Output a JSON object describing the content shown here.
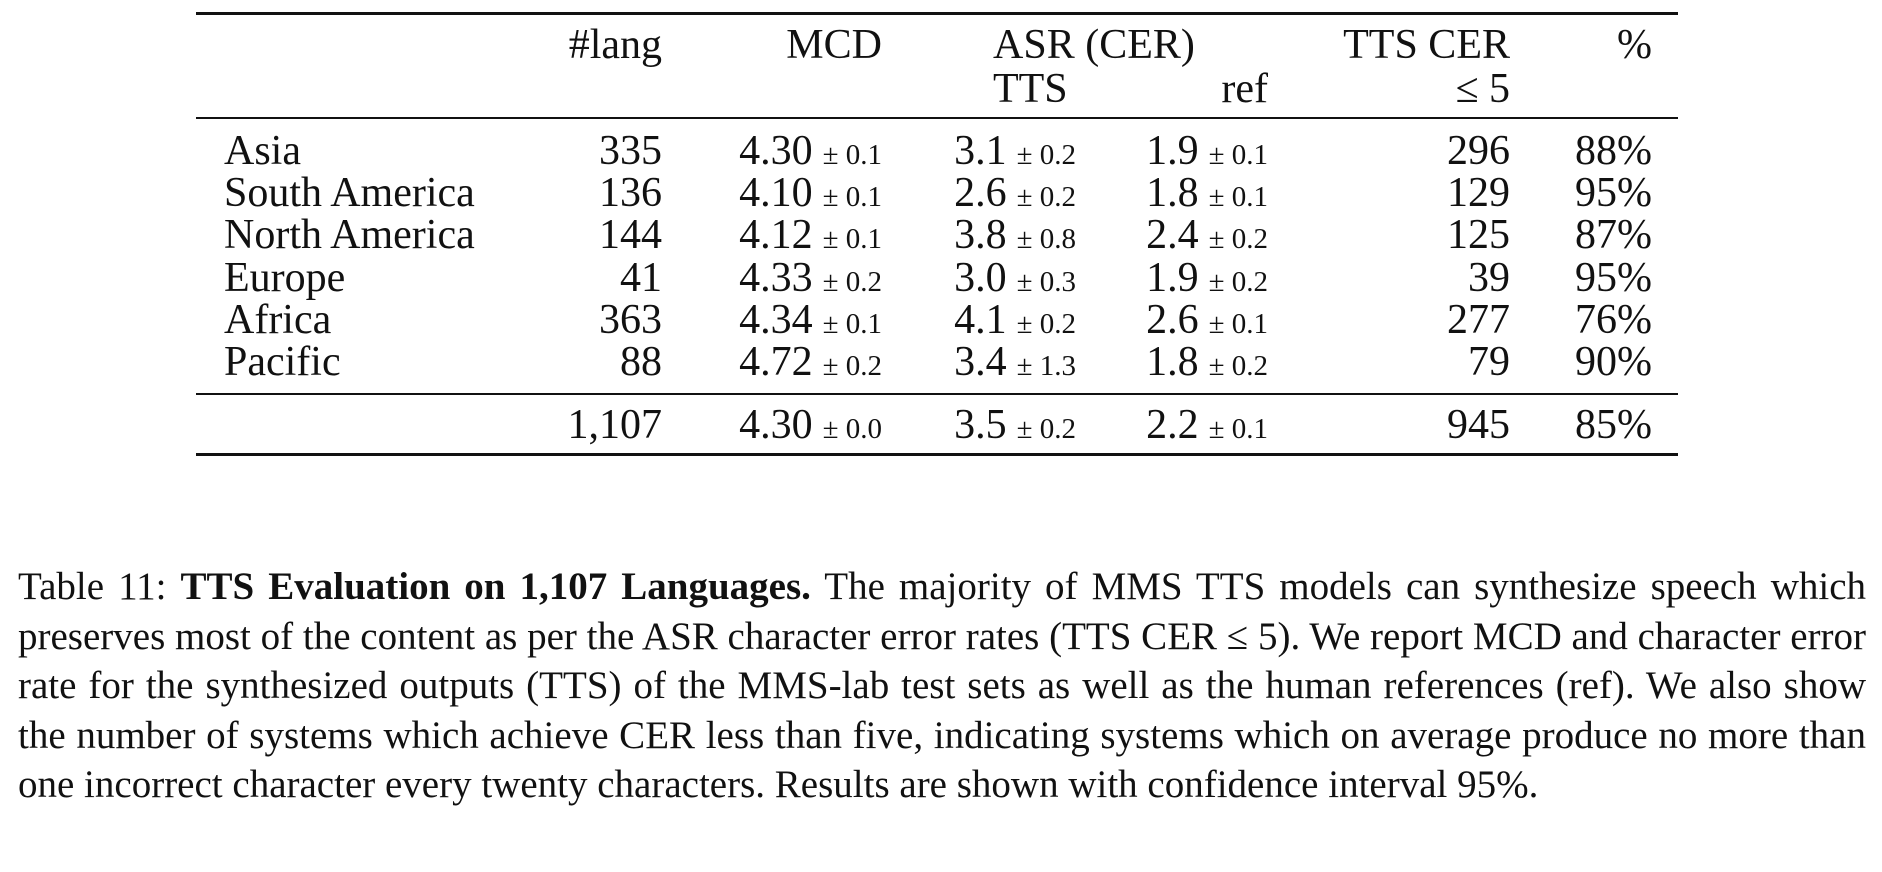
{
  "table": {
    "headers": {
      "lang": "#lang",
      "mcd": "MCD",
      "asr": "ASR (CER)",
      "asr_tts": "TTS",
      "asr_ref": "ref",
      "tts_cer": "TTS CER",
      "tts_cer_sub": "≤ 5",
      "pct": "%"
    },
    "rows": [
      {
        "region": "Asia",
        "lang": "335",
        "mcd": "4.30",
        "mcd_ci": "± 0.1",
        "tts": "3.1",
        "tts_ci": "± 0.2",
        "ref": "1.9",
        "ref_ci": "± 0.1",
        "tts_cer": "296",
        "pct": "88%"
      },
      {
        "region": "South America",
        "lang": "136",
        "mcd": "4.10",
        "mcd_ci": "± 0.1",
        "tts": "2.6",
        "tts_ci": "± 0.2",
        "ref": "1.8",
        "ref_ci": "± 0.1",
        "tts_cer": "129",
        "pct": "95%"
      },
      {
        "region": "North America",
        "lang": "144",
        "mcd": "4.12",
        "mcd_ci": "± 0.1",
        "tts": "3.8",
        "tts_ci": "± 0.8",
        "ref": "2.4",
        "ref_ci": "± 0.2",
        "tts_cer": "125",
        "pct": "87%"
      },
      {
        "region": "Europe",
        "lang": "41",
        "mcd": "4.33",
        "mcd_ci": "± 0.2",
        "tts": "3.0",
        "tts_ci": "± 0.3",
        "ref": "1.9",
        "ref_ci": "± 0.2",
        "tts_cer": "39",
        "pct": "95%"
      },
      {
        "region": "Africa",
        "lang": "363",
        "mcd": "4.34",
        "mcd_ci": "± 0.1",
        "tts": "4.1",
        "tts_ci": "± 0.2",
        "ref": "2.6",
        "ref_ci": "± 0.1",
        "tts_cer": "277",
        "pct": "76%"
      },
      {
        "region": "Pacific",
        "lang": "88",
        "mcd": "4.72",
        "mcd_ci": "± 0.2",
        "tts": "3.4",
        "tts_ci": "± 1.3",
        "ref": "1.8",
        "ref_ci": "± 0.2",
        "tts_cer": "79",
        "pct": "90%"
      }
    ],
    "total": {
      "region": "",
      "lang": "1,107",
      "mcd": "4.30",
      "mcd_ci": "± 0.0",
      "tts": "3.5",
      "tts_ci": "± 0.2",
      "ref": "2.2",
      "ref_ci": "± 0.1",
      "tts_cer": "945",
      "pct": "85%"
    }
  },
  "caption": {
    "label": "Table 11:",
    "title": "TTS Evaluation on 1,107 Languages.",
    "text": "The majority of MMS TTS models can synthesize speech which preserves most of the content as per the ASR character error rates (TTS CER ≤ 5). We report MCD and character error rate for the synthesized outputs (TTS) of the MMS-lab test sets as well as the human references (ref). We also show the number of systems which achieve CER less than five, indicating systems which on average produce no more than one incorrect character every twenty characters. Results are shown with confidence interval 95%."
  }
}
